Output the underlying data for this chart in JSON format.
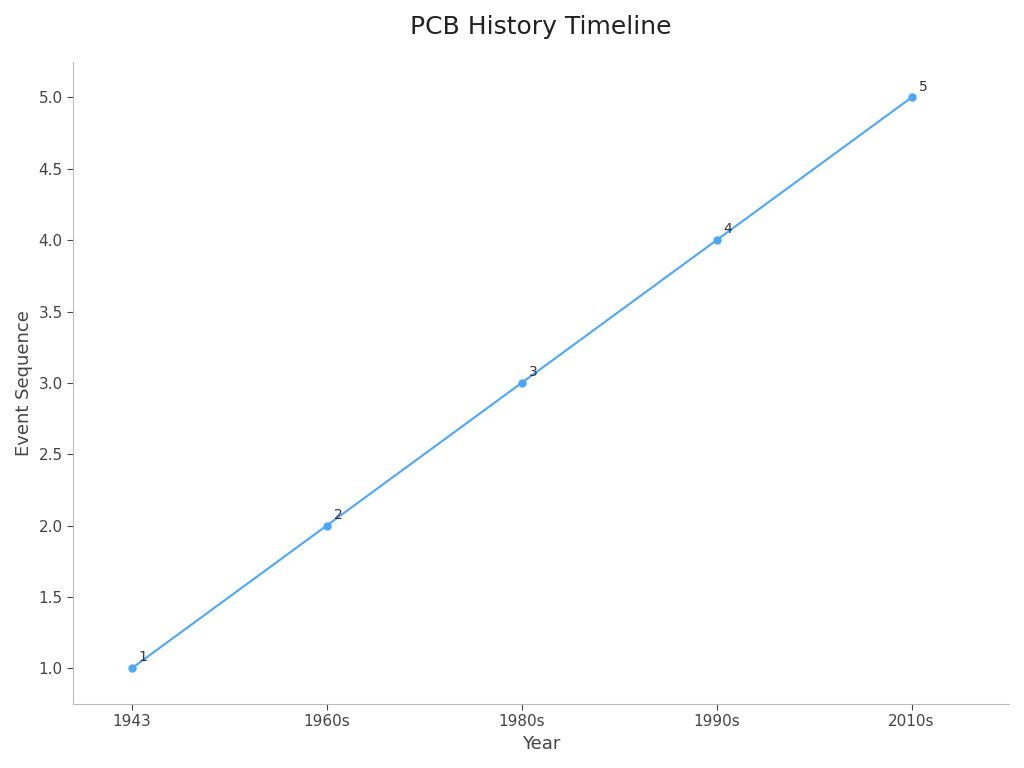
{
  "title": "PCB History Timeline",
  "xlabel": "Year",
  "ylabel": "Event Sequence",
  "x_labels": [
    "1943",
    "1960s",
    "1980s",
    "1990s",
    "2010s"
  ],
  "x_values": [
    0,
    1,
    2,
    3,
    4
  ],
  "y_values": [
    1,
    2,
    3,
    4,
    5
  ],
  "point_labels": [
    "1",
    "2",
    "3",
    "4",
    "5"
  ],
  "line_color": "#4da6ff",
  "marker_color": "#4da6ff",
  "background_color": "#ffffff",
  "title_fontsize": 18,
  "axis_label_fontsize": 13,
  "tick_fontsize": 11,
  "annotation_fontsize": 10,
  "ylim": [
    0.75,
    5.25
  ],
  "yticks": [
    1.0,
    1.5,
    2.0,
    2.5,
    3.0,
    3.5,
    4.0,
    4.5,
    5.0
  ],
  "spine_color": "#bbbbbb"
}
